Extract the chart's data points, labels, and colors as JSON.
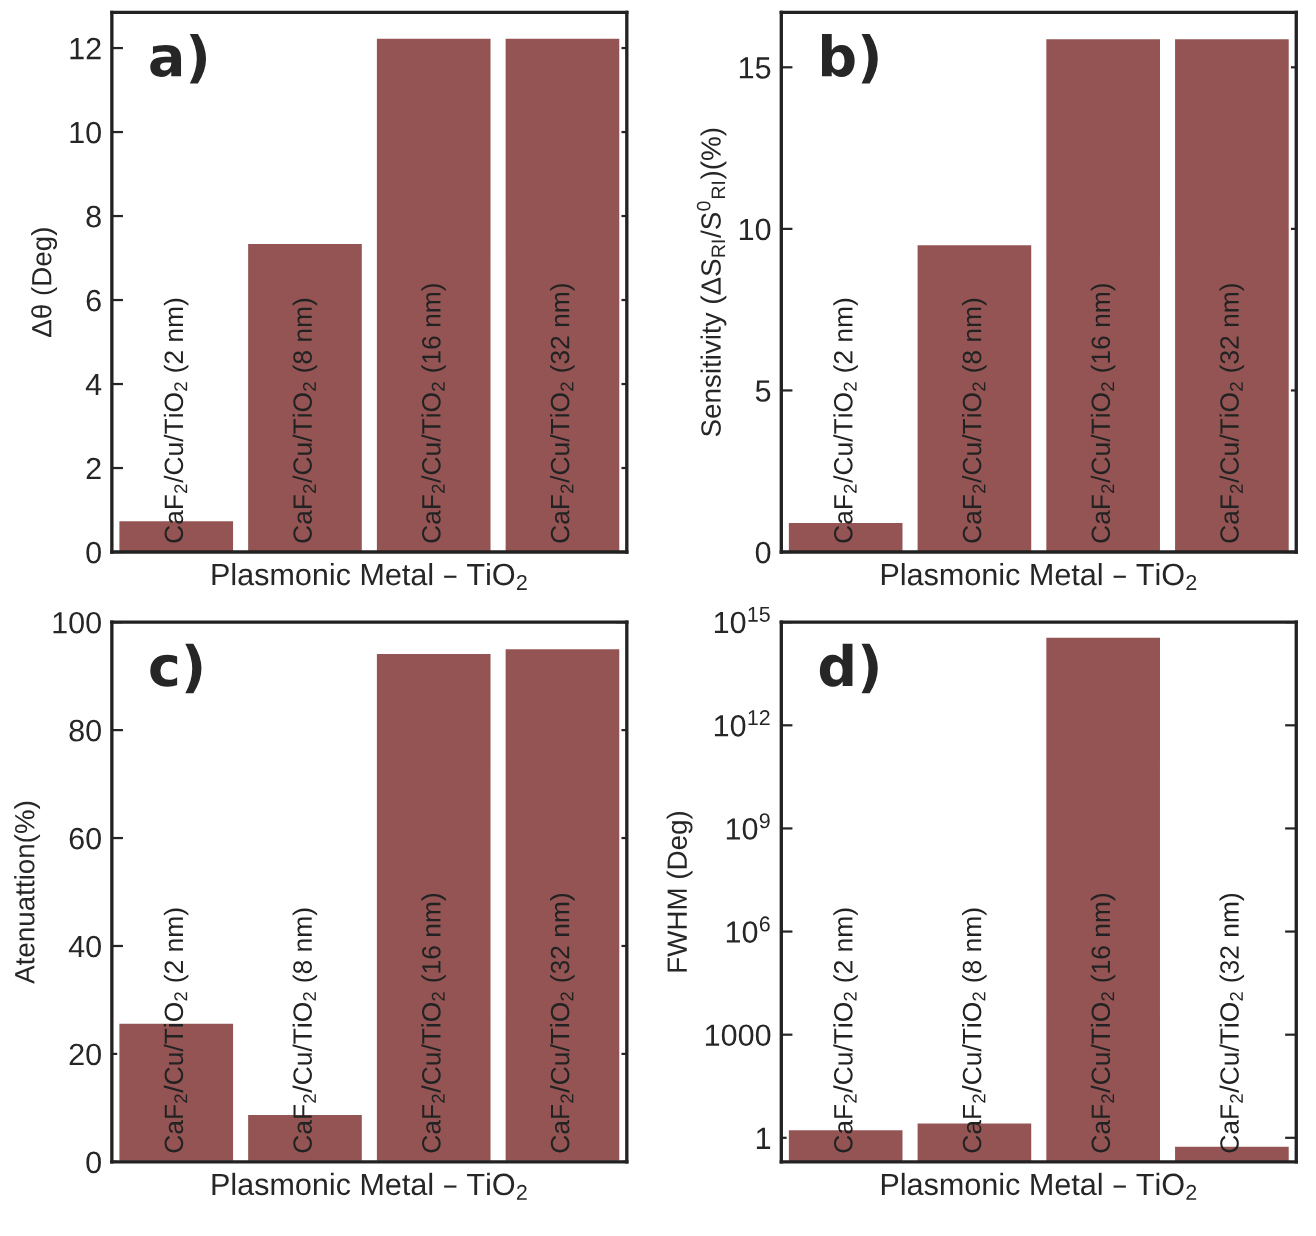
{
  "chart_data": [
    {
      "type": "bar",
      "categories": [
        "CaF$_{2}$/Cu/TiO$_{2}$ (2 nm)",
        "CaF$_{2}$/Cu/TiO$_{2}$ (8 nm)",
        "CaF$_{2}$/Cu/TiO$_{2}$ (16 nm)",
        "CaF$_{2}$/Cu/TiO$_{2}$ (32 nm)"
      ],
      "values": [
        0.76,
        7.36,
        12.25,
        12.25
      ],
      "color": "#945454",
      "xlabel": "Plasmonic Metal – TiO$_{2}$",
      "ylabel": "Δθ (Deg)",
      "annotations": [
        "a)"
      ],
      "ylim": [
        0,
        12.85
      ],
      "yticks": [
        0,
        2,
        4,
        6,
        8,
        10,
        12
      ],
      "grid": false,
      "legend": false
    },
    {
      "type": "bar",
      "categories": [
        "CaF$_{2}$/Cu/TiO$_{2}$ (2 nm)",
        "CaF$_{2}$/Cu/TiO$_{2}$ (8 nm)",
        "CaF$_{2}$/Cu/TiO$_{2}$ (16 nm)",
        "CaF$_{2}$/Cu/TiO$_{2}$ (32 nm)"
      ],
      "values": [
        0.93,
        9.53,
        15.9,
        15.9
      ],
      "color": "#945454",
      "xlabel": "Plasmonic Metal – TiO$_{2}$",
      "ylabel": "Sensitivity (ΔS$_{RI}$/S$^{0}$$_{RI}$)(%)",
      "annotations": [
        "b)"
      ],
      "ylim": [
        0,
        16.7
      ],
      "yticks": [
        0,
        5,
        10,
        15
      ],
      "grid": false,
      "legend": false
    },
    {
      "type": "bar",
      "categories": [
        "CaF$_{2}$/Cu/TiO$_{2}$ (2 nm)",
        "CaF$_{2}$/Cu/TiO$_{2}$ (8 nm)",
        "CaF$_{2}$/Cu/TiO$_{2}$ (16 nm)",
        "CaF$_{2}$/Cu/TiO$_{2}$ (32 nm)"
      ],
      "values": [
        25.8,
        8.9,
        94.3,
        95.2
      ],
      "color": "#945454",
      "xlabel": "Plasmonic Metal – TiO$_{2}$",
      "ylabel": "Atenuattion(%)",
      "annotations": [
        "c)"
      ],
      "ylim": [
        0,
        100
      ],
      "yticks": [
        0,
        20,
        40,
        60,
        80,
        100
      ],
      "grid": false,
      "legend": false
    },
    {
      "type": "bar",
      "categories": [
        "CaF$_{2}$/Cu/TiO$_{2}$ (2 nm)",
        "CaF$_{2}$/Cu/TiO$_{2}$ (8 nm)",
        "CaF$_{2}$/Cu/TiO$_{2}$ (16 nm)",
        "CaF$_{2}$/Cu/TiO$_{2}$ (32 nm)"
      ],
      "values": [
        1.8,
        2.8,
        380000000000000.0,
        0.59
      ],
      "color": "#945454",
      "xlabel": "Plasmonic Metal – TiO$_{2}$",
      "ylabel": "FWHM (Deg)",
      "annotations": [
        "d)"
      ],
      "log": "y",
      "ylim": [
        0.2,
        1000000000000000.0
      ],
      "yticks": [
        1,
        1000,
        {
          "value": 1000000,
          "label": "10$^{6}$"
        },
        {
          "value": 1000000000,
          "label": "10$^{9}$"
        },
        {
          "value": 1000000000000,
          "label": "10$^{12}$"
        },
        {
          "value": 1000000000000000,
          "label": "10$^{15}$"
        }
      ],
      "grid": false,
      "legend": false
    }
  ]
}
